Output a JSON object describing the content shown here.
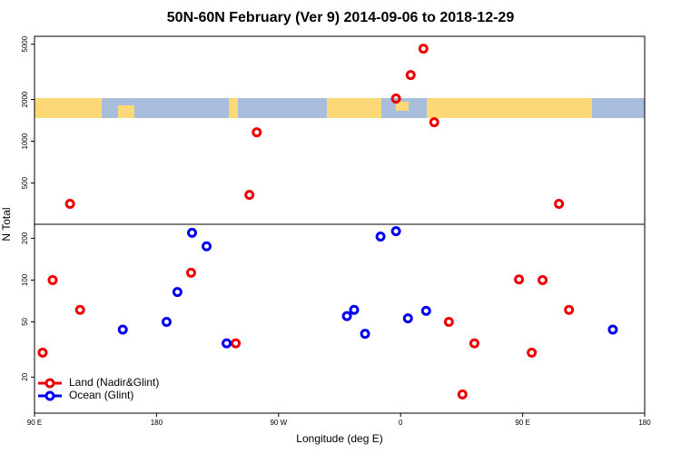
{
  "chart_data": {
    "type": "scatter",
    "title": "50N-60N February (Ver 9)   2014-09-06 to 2018-12-29",
    "x_label": "Longitude (deg E)",
    "y_label": "N Total",
    "log_y": true,
    "legend": "bottom-left",
    "xlim": [
      90,
      540
    ],
    "xticks": [
      {
        "value": 90,
        "label": "90 E"
      },
      180,
      {
        "value": 270,
        "label": "90 W"
      },
      {
        "value": 360,
        "label": "0"
      },
      {
        "value": 450,
        "label": "90 E"
      },
      {
        "value": 540,
        "label": "180"
      }
    ],
    "ylim": [
      11,
      5700
    ],
    "yticks": [
      20,
      50,
      100,
      200,
      500,
      1000,
      2000,
      5000
    ],
    "series": [
      {
        "name": "Land (Nadir&Glint)",
        "color": "#ee0000",
        "x": [
          96,
          103.4,
          116.2,
          123.6,
          205.5,
          238.4,
          248.5,
          253.9,
          356.6,
          367.4,
          376.8,
          384.8,
          395.6,
          405.6,
          414.4,
          447.3,
          456.7,
          464.7,
          476.8,
          484.2
        ],
        "values": [
          30,
          100,
          354,
          61,
          113,
          35,
          411,
          1160,
          2030,
          3000,
          4640,
          1370,
          50,
          15,
          35,
          101,
          30,
          100,
          354,
          61
        ]
      },
      {
        "name": "Ocean (Glint)",
        "color": "#0000ee",
        "x": [
          155.1,
          187.4,
          195.4,
          206.2,
          216.9,
          231.7,
          320.4,
          325.7,
          333.8,
          345.2,
          356.6,
          365.4,
          378.8,
          516.5
        ],
        "values": [
          44,
          50,
          82,
          219,
          175,
          35,
          55,
          61,
          41,
          206,
          225,
          53,
          60,
          44
        ]
      }
    ]
  }
}
